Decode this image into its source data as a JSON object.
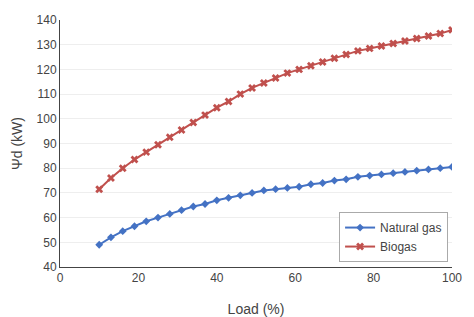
{
  "chart_data": {
    "type": "line",
    "xlabel": "Load (%)",
    "ylabel": "Ψd (kW)",
    "x": [
      10,
      13,
      16,
      19,
      22,
      25,
      28,
      31,
      34,
      37,
      40,
      43,
      46,
      49,
      52,
      55,
      58,
      61,
      64,
      67,
      70,
      73,
      76,
      79,
      82,
      85,
      88,
      91,
      94,
      97,
      100
    ],
    "series": [
      {
        "name": "Natural gas",
        "color": "#4472C4",
        "marker": "diamond",
        "values": [
          49.0,
          52.0,
          54.5,
          56.5,
          58.5,
          60.0,
          61.5,
          63.0,
          64.5,
          65.5,
          67.0,
          68.0,
          69.0,
          70.0,
          71.0,
          71.5,
          72.0,
          72.5,
          73.5,
          74.0,
          75.0,
          75.5,
          76.5,
          77.0,
          77.5,
          78.0,
          78.5,
          79.0,
          79.5,
          80.0,
          80.5
        ]
      },
      {
        "name": "Biogas",
        "color": "#C0504D",
        "marker": "x",
        "values": [
          71.5,
          76.0,
          80.0,
          83.5,
          86.5,
          89.5,
          92.5,
          95.5,
          98.5,
          101.5,
          104.5,
          107.0,
          110.0,
          112.5,
          114.5,
          116.5,
          118.5,
          120.0,
          121.5,
          123.0,
          124.5,
          126.0,
          127.5,
          128.5,
          129.5,
          130.5,
          131.5,
          132.5,
          133.5,
          134.5,
          136.0
        ]
      }
    ],
    "xlim": [
      0,
      100
    ],
    "ylim": [
      40,
      140
    ],
    "xticks": [
      0,
      20,
      40,
      60,
      80,
      100
    ],
    "yticks": [
      40,
      50,
      60,
      70,
      80,
      90,
      100,
      110,
      120,
      130,
      140
    ],
    "grid": "y",
    "legend": "lower right"
  }
}
